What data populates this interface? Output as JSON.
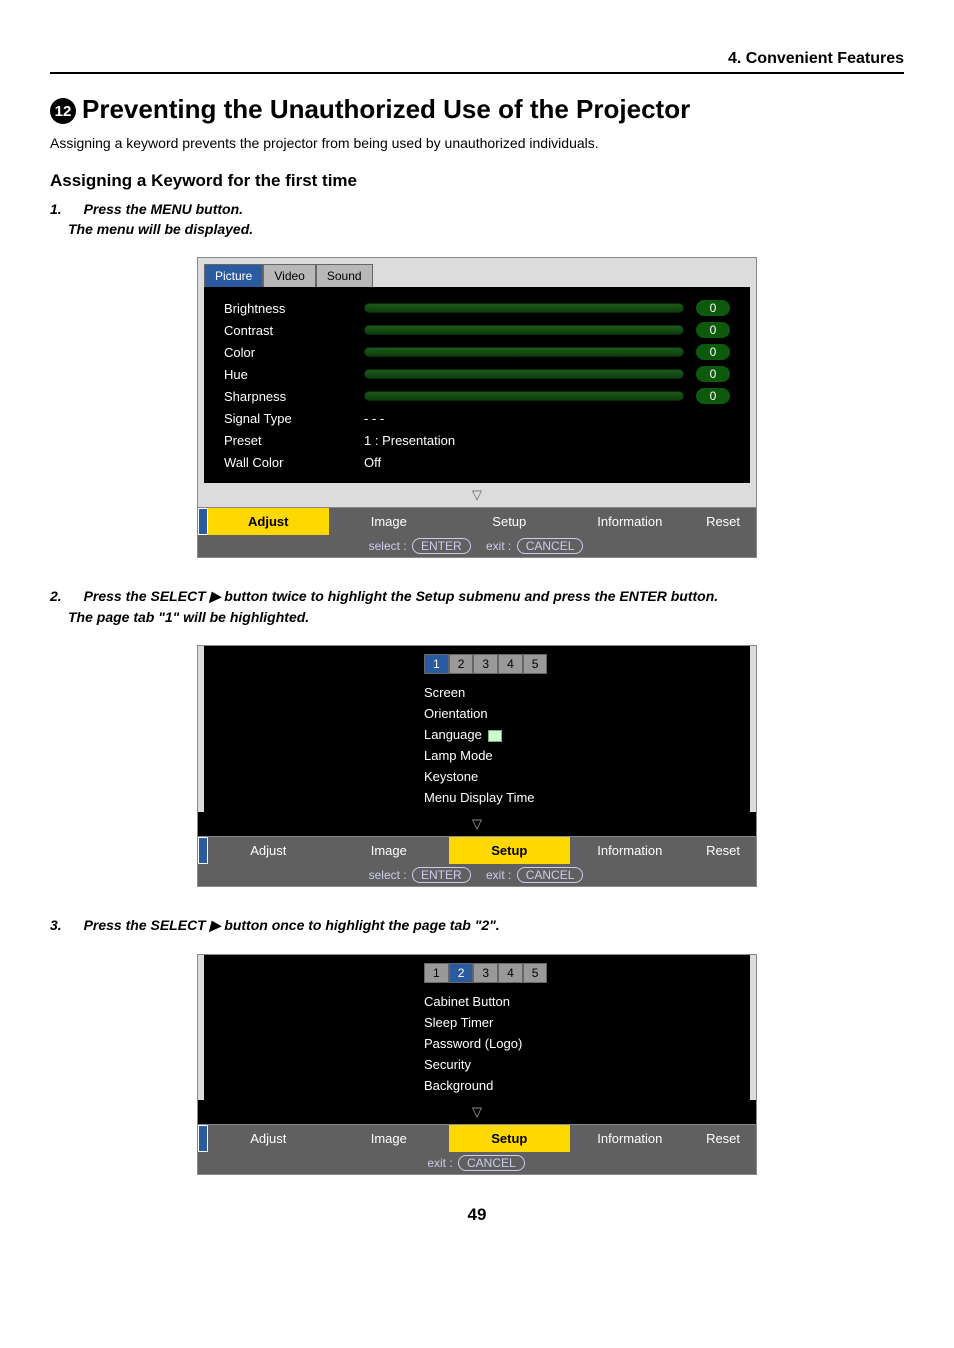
{
  "header": {
    "chapter": "4. Convenient Features"
  },
  "section_badge": "⓬",
  "title": "Preventing the Unauthorized Use of the Projector",
  "intro": "Assigning a keyword prevents the projector from being used by unauthorized individuals.",
  "subhead": "Assigning a Keyword for the first time",
  "step1": {
    "num": "1.",
    "text": "Press the MENU button.",
    "note": "The menu will be displayed."
  },
  "menu1": {
    "tabs": [
      "Picture",
      "Video",
      "Sound"
    ],
    "active_tab": 0,
    "rows": [
      {
        "label": "Brightness",
        "val": "0"
      },
      {
        "label": "Contrast",
        "val": "0"
      },
      {
        "label": "Color",
        "val": "0"
      },
      {
        "label": "Hue",
        "val": "0"
      },
      {
        "label": "Sharpness",
        "val": "0"
      }
    ],
    "text_rows": [
      {
        "label": "Signal Type",
        "value": "- - -"
      },
      {
        "label": "Preset",
        "value": "1 : Presentation"
      },
      {
        "label": "Wall Color",
        "value": "Off"
      }
    ],
    "bottom_tabs": [
      "Adjust",
      "Image",
      "Setup",
      "Information",
      "Reset"
    ],
    "active_bottom": 0,
    "footer_select": "select :",
    "footer_enter": "ENTER",
    "footer_exit": "exit :",
    "footer_cancel": "CANCEL"
  },
  "step2": {
    "num": "2.",
    "text": "Press the SELECT ▶ button twice to highlight the Setup submenu and press the ENTER button.",
    "note": "The page tab \"1\" will be highlighted."
  },
  "menu2": {
    "ptabs": [
      "1",
      "2",
      "3",
      "4",
      "5"
    ],
    "active_ptab": 0,
    "items": [
      "Screen",
      "Orientation",
      "Language",
      "Lamp Mode",
      "Keystone",
      "Menu Display Time"
    ],
    "lang_index": 2,
    "bottom_tabs": [
      "Adjust",
      "Image",
      "Setup",
      "Information",
      "Reset"
    ],
    "active_bottom": 2,
    "footer_select": "select :",
    "footer_enter": "ENTER",
    "footer_exit": "exit :",
    "footer_cancel": "CANCEL"
  },
  "step3": {
    "num": "3.",
    "text": "Press the SELECT ▶ button once to highlight the page tab \"2\"."
  },
  "menu3": {
    "ptabs": [
      "1",
      "2",
      "3",
      "4",
      "5"
    ],
    "active_ptab": 1,
    "items": [
      "Cabinet Button",
      "Sleep Timer",
      "Password (Logo)",
      "Security",
      "Background"
    ],
    "bottom_tabs": [
      "Adjust",
      "Image",
      "Setup",
      "Information",
      "Reset"
    ],
    "active_bottom": 2,
    "footer_exit": "exit :",
    "footer_cancel": "CANCEL"
  },
  "page_number": "49",
  "colors": {
    "tab_active_bg": "#2a5aa0",
    "btab_active_bg": "#ffd800",
    "slider_bg": "#0d5a0d",
    "osd_body_bg": "#000000",
    "osd_frame_bg": "#dcdcdc"
  }
}
